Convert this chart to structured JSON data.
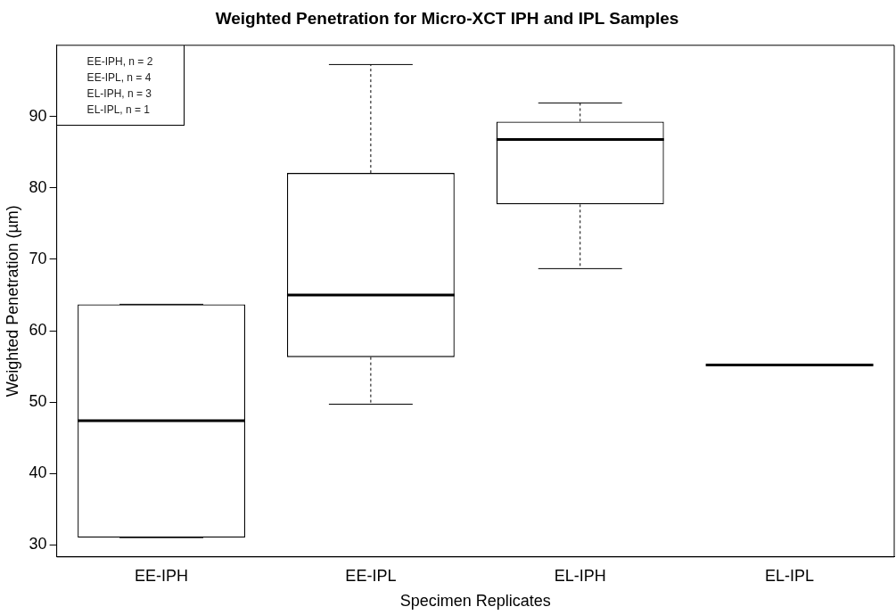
{
  "chart_data": {
    "type": "box",
    "title": "Weighted Penetration for Micro-XCT IPH and IPL Samples",
    "xlabel": "Specimen Replicates",
    "ylabel": "Weighted Penetration (µm)",
    "categories": [
      "EE-IPH",
      "EE-IPL",
      "EL-IPH",
      "EL-IPL"
    ],
    "boxes": [
      {
        "low": 31.0,
        "q1": 31.0,
        "median": 47.4,
        "q3": 63.7,
        "high": 63.7
      },
      {
        "low": 49.7,
        "q1": 56.3,
        "median": 65.0,
        "q3": 82.1,
        "high": 97.3
      },
      {
        "low": 68.7,
        "q1": 77.7,
        "median": 86.8,
        "q3": 89.3,
        "high": 91.9
      },
      {
        "low": 55.2,
        "q1": 55.2,
        "median": 55.2,
        "q3": 55.2,
        "high": 55.2
      }
    ],
    "ylim": [
      28.3,
      100
    ],
    "yticks": [
      30,
      40,
      50,
      60,
      70,
      80,
      90
    ],
    "grid": false,
    "annotations": [
      "EE-IPH, n = 2",
      "EE-IPL, n = 4",
      "EL-IPH, n = 3",
      "EL-IPL, n = 1"
    ]
  }
}
